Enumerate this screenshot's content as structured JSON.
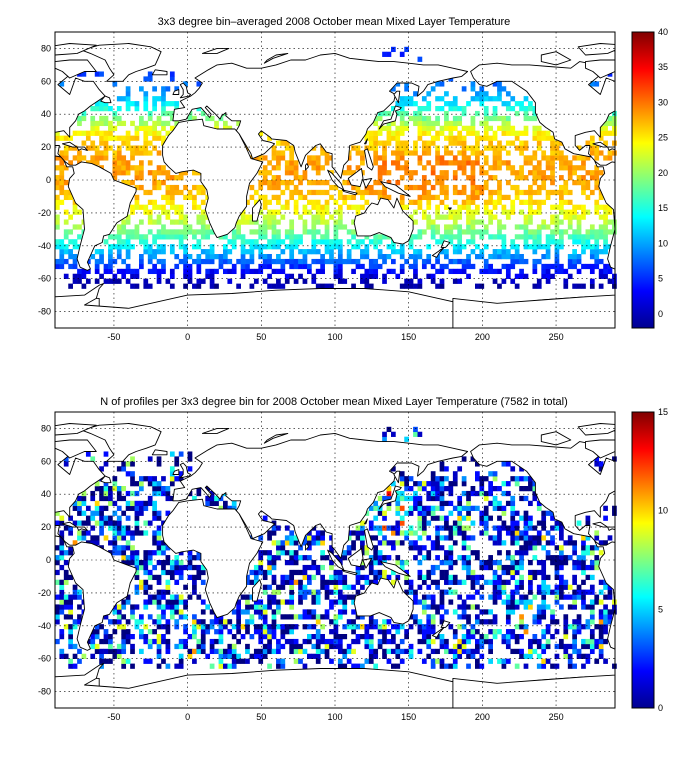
{
  "figure": {
    "panels": [
      {
        "title": "3x3 degree bin–averaged 2008 October mean Mixed Layer Temperature",
        "colorbar_ticks": [
          "0",
          "5",
          "10",
          "15",
          "20",
          "25",
          "30",
          "35",
          "40"
        ],
        "x_ticks": [
          "-50",
          "0",
          "50",
          "100",
          "150",
          "200",
          "250"
        ],
        "y_ticks": [
          "80",
          "60",
          "40",
          "20",
          "0",
          "-20",
          "-40",
          "-60",
          "-80"
        ]
      },
      {
        "title": "N of profiles per 3x3 degree bin for 2008 October mean Mixed Layer Temperature  (7582 in total)",
        "colorbar_ticks": [
          "0",
          "5",
          "10",
          "15"
        ],
        "x_ticks": [
          "-50",
          "0",
          "50",
          "100",
          "150",
          "200",
          "250"
        ],
        "y_ticks": [
          "80",
          "60",
          "40",
          "20",
          "0",
          "-20",
          "-40",
          "-60",
          "-80"
        ]
      }
    ]
  },
  "chart_data": [
    {
      "type": "heatmap",
      "title": "3x3 degree bin–averaged 2008 October mean Mixed Layer Temperature",
      "xlabel": "",
      "ylabel": "",
      "xlim": [
        -90,
        290
      ],
      "ylim": [
        -90,
        90
      ],
      "x_ticks": [
        -50,
        0,
        50,
        100,
        150,
        200,
        250
      ],
      "y_ticks": [
        -80,
        -60,
        -40,
        -20,
        0,
        20,
        40,
        60,
        80
      ],
      "bin_size_deg": 3,
      "colorbar": {
        "min": -2,
        "max": 40,
        "ticks": [
          0,
          5,
          10,
          15,
          20,
          25,
          30,
          35,
          40
        ],
        "colormap": "jet"
      },
      "grid": true,
      "latitude_profile_approx": {
        "lat": [
          -66,
          -60,
          -54,
          -48,
          -42,
          -36,
          -30,
          -24,
          -18,
          -12,
          -6,
          0,
          6,
          12,
          18,
          24,
          30,
          36,
          42,
          48,
          54,
          60,
          66
        ],
        "value": [
          -1,
          1,
          4,
          8,
          12,
          16,
          19,
          22,
          24,
          26,
          27,
          28,
          28,
          28,
          27,
          26,
          24,
          20,
          16,
          12,
          9,
          7,
          5
        ]
      }
    },
    {
      "type": "heatmap",
      "title": "N of profiles per 3x3 degree bin for 2008 October mean Mixed Layer Temperature  (7582 in total)",
      "xlabel": "",
      "ylabel": "",
      "xlim": [
        -90,
        290
      ],
      "ylim": [
        -90,
        90
      ],
      "x_ticks": [
        -50,
        0,
        50,
        100,
        150,
        200,
        250
      ],
      "y_ticks": [
        -80,
        -60,
        -40,
        -20,
        0,
        20,
        40,
        60,
        80
      ],
      "bin_size_deg": 3,
      "total_profiles": 7582,
      "colorbar": {
        "min": 0,
        "max": 15,
        "ticks": [
          0,
          5,
          10,
          15
        ],
        "colormap": "jet"
      },
      "grid": true
    }
  ]
}
